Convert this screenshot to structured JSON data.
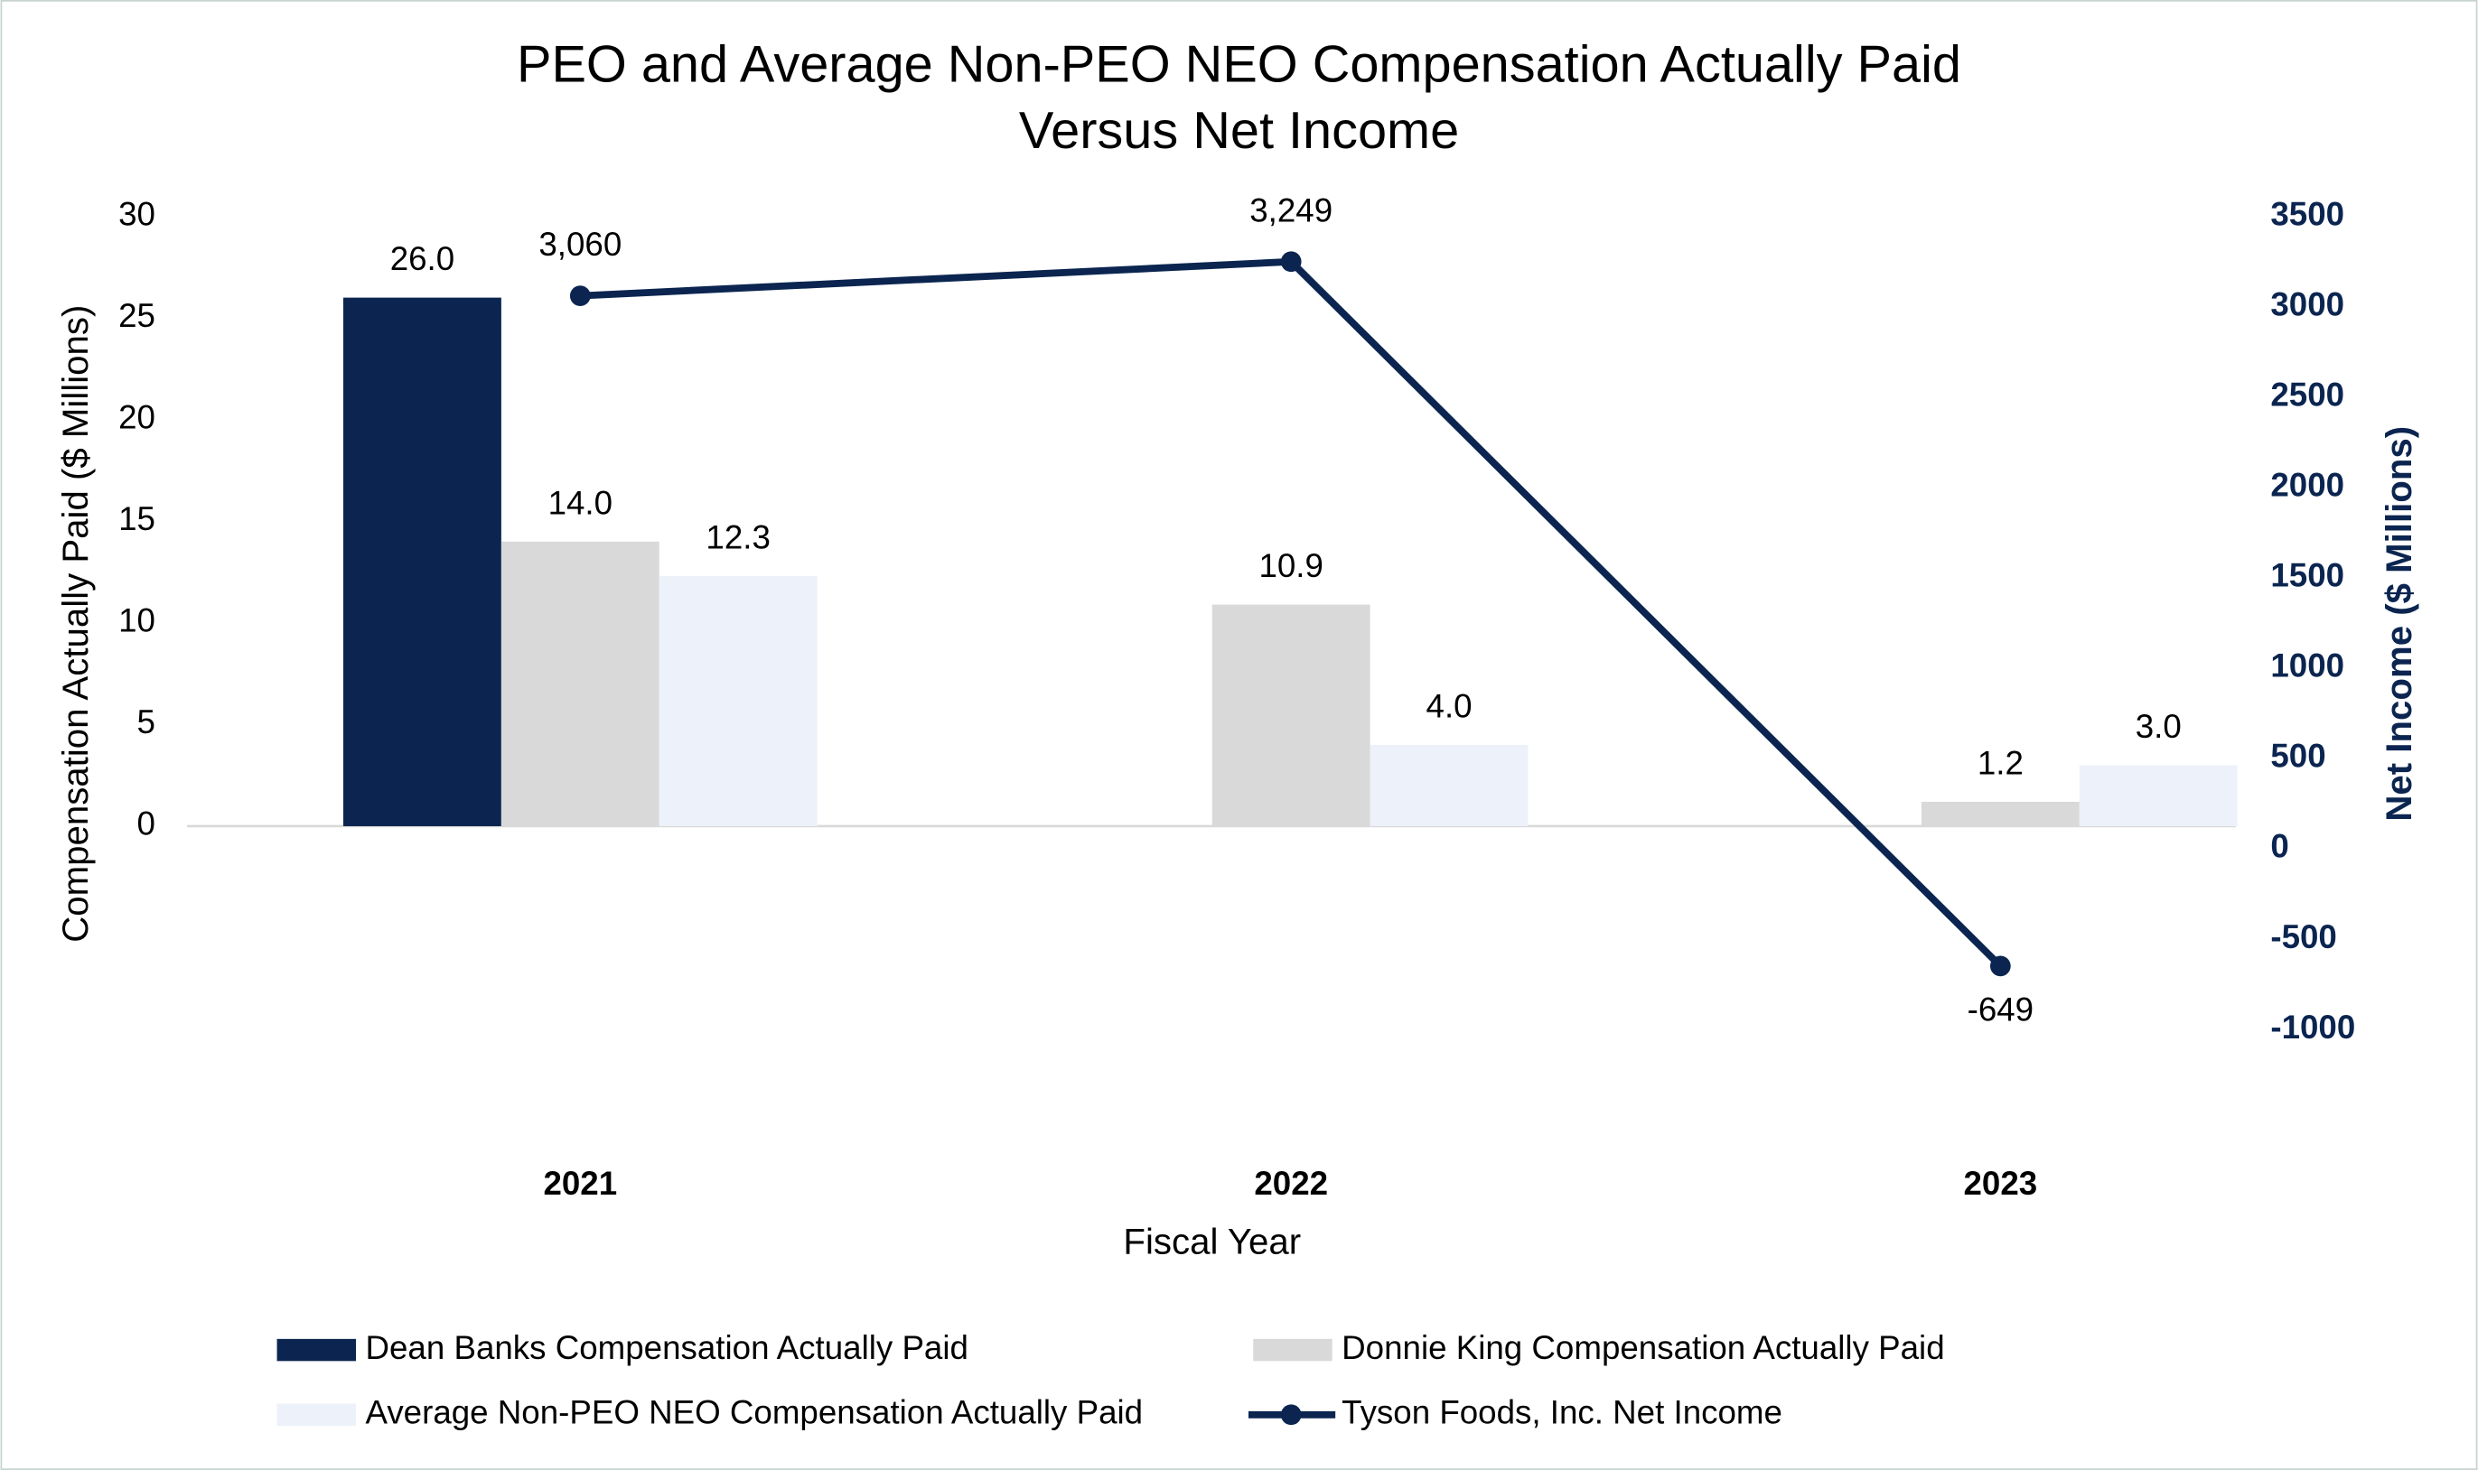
{
  "chart_data": {
    "type": "bar",
    "title": [
      "PEO and Average Non-PEO NEO Compensation Actually Paid",
      "Versus Net Income"
    ],
    "categories": [
      "2021",
      "2022",
      "2023"
    ],
    "x_label": "Fiscal Year",
    "y_label": "Compensation Actually Paid ($ Millions)",
    "y2_label": "Net Income ($ Millions)",
    "ylim": [
      -10,
      30
    ],
    "yticks": [
      0,
      5,
      10,
      15,
      20,
      25,
      30
    ],
    "y2lim": [
      -1000,
      3500
    ],
    "y2ticks": [
      -1000,
      -500,
      0,
      500,
      1000,
      1500,
      2000,
      2500,
      3000,
      3500
    ],
    "series": [
      {
        "name": "Dean Banks Compensation Actually Paid",
        "type": "bar",
        "color": "#0b2550",
        "values": [
          26.0,
          null,
          null
        ],
        "value_labels": [
          "26.0",
          null,
          null
        ]
      },
      {
        "name": "Donnie King Compensation Actually Paid",
        "type": "bar",
        "color": "#d9d9d9",
        "values": [
          14.0,
          10.9,
          1.2
        ],
        "value_labels": [
          "14.0",
          "10.9",
          "1.2"
        ]
      },
      {
        "name": "Average Non-PEO NEO Compensation Actually Paid",
        "type": "bar",
        "color": "#edf1f9",
        "values": [
          12.3,
          4.0,
          3.0
        ],
        "value_labels": [
          "12.3",
          "4.0",
          "3.0"
        ]
      },
      {
        "name": "Tyson Foods, Inc. Net Income",
        "type": "line",
        "axis": "y2",
        "color": "#0b2550",
        "values": [
          3060,
          3249,
          -649
        ],
        "value_labels": [
          "3,060",
          "3,249",
          "-649"
        ]
      }
    ]
  }
}
